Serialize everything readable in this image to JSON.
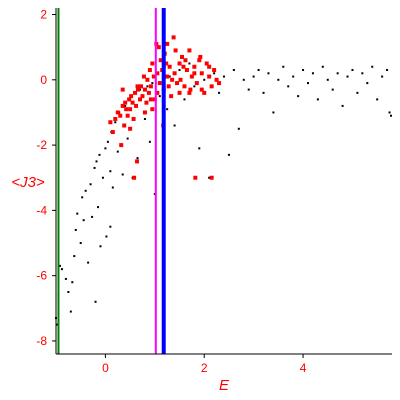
{
  "chart_data": {
    "type": "scatter",
    "title": "",
    "xlabel": "E",
    "ylabel": "<J3>",
    "xlim": [
      -1.0,
      5.8
    ],
    "ylim": [
      -8.4,
      2.2
    ],
    "xticks": [
      0,
      2,
      4
    ],
    "xtick_labels": [
      "0",
      "2",
      "4"
    ],
    "yticks": [
      2,
      0,
      -2,
      -4,
      -6,
      -8
    ],
    "ytick_labels": [
      "2",
      "0",
      "-2",
      "-4",
      "-6",
      "-8"
    ],
    "grid": false,
    "legend": "none",
    "vertical_lines": [
      {
        "x": -0.95,
        "color": "#008000"
      },
      {
        "x": 1.02,
        "color": "#ff00ff"
      },
      {
        "x": 1.18,
        "color": "#0000ff"
      }
    ],
    "series": [
      {
        "color": "#000000",
        "marker": "small-dot",
        "points": [
          [
            -1.0,
            -7.3
          ],
          [
            -0.98,
            -7.5
          ],
          [
            -0.95,
            -6.6
          ],
          [
            -0.92,
            -5.7
          ],
          [
            -0.88,
            -5.8
          ],
          [
            -0.8,
            -6.1
          ],
          [
            -0.75,
            -6.5
          ],
          [
            -0.7,
            -7.1
          ],
          [
            -0.67,
            -6.2
          ],
          [
            -0.63,
            -5.4
          ],
          [
            -0.6,
            -4.6
          ],
          [
            -0.57,
            -4.1
          ],
          [
            -0.5,
            -5.0
          ],
          [
            -0.47,
            -3.6
          ],
          [
            -0.44,
            -4.3
          ],
          [
            -0.4,
            -3.4
          ],
          [
            -0.35,
            -5.6
          ],
          [
            -0.3,
            -3.2
          ],
          [
            -0.27,
            -4.2
          ],
          [
            -0.2,
            -6.8
          ],
          [
            -0.22,
            -2.7
          ],
          [
            -0.18,
            -2.5
          ],
          [
            -0.15,
            -3.9
          ],
          [
            -0.12,
            -2.3
          ],
          [
            -0.1,
            -5.1
          ],
          [
            -0.05,
            -3.0
          ],
          [
            0.0,
            -2.1
          ],
          [
            0.02,
            -4.8
          ],
          [
            0.05,
            -1.9
          ],
          [
            0.1,
            -2.8
          ],
          [
            0.1,
            -4.5
          ],
          [
            0.12,
            -1.6
          ],
          [
            0.15,
            -3.3
          ],
          [
            0.2,
            -1.3
          ],
          [
            0.25,
            -2.2
          ],
          [
            0.28,
            -1.0
          ],
          [
            0.35,
            -2.9
          ],
          [
            0.4,
            -0.8
          ],
          [
            0.45,
            -1.8
          ],
          [
            0.5,
            -0.6
          ],
          [
            0.55,
            -3.0
          ],
          [
            0.6,
            -0.4
          ],
          [
            0.65,
            -2.4
          ],
          [
            0.7,
            -0.3
          ],
          [
            0.8,
            -1.2
          ],
          [
            0.85,
            -0.2
          ],
          [
            0.9,
            -1.9
          ],
          [
            0.95,
            -0.1
          ],
          [
            1.0,
            -3.5
          ],
          [
            1.05,
            0.2
          ],
          [
            1.1,
            -0.5
          ],
          [
            1.2,
            0.4
          ],
          [
            1.25,
            -0.9
          ],
          [
            1.3,
            0.1
          ],
          [
            1.4,
            -1.4
          ],
          [
            1.5,
            0.3
          ],
          [
            1.6,
            -0.6
          ],
          [
            1.7,
            0.5
          ],
          [
            1.8,
            -0.2
          ],
          [
            1.9,
            -2.1
          ],
          [
            2.0,
            0.0
          ],
          [
            2.1,
            -3.0
          ],
          [
            2.2,
            0.2
          ],
          [
            2.3,
            -0.4
          ],
          [
            2.4,
            0.1
          ],
          [
            2.5,
            -2.3
          ],
          [
            2.6,
            0.3
          ],
          [
            2.7,
            -1.5
          ],
          [
            2.8,
            0.0
          ],
          [
            2.9,
            -0.3
          ],
          [
            3.0,
            0.1
          ],
          [
            3.1,
            0.3
          ],
          [
            3.2,
            -0.4
          ],
          [
            3.3,
            0.2
          ],
          [
            3.4,
            -1.0
          ],
          [
            3.5,
            0.0
          ],
          [
            3.6,
            0.4
          ],
          [
            3.7,
            -0.2
          ],
          [
            3.8,
            0.1
          ],
          [
            3.9,
            -0.5
          ],
          [
            4.0,
            0.3
          ],
          [
            4.1,
            -0.1
          ],
          [
            4.2,
            0.2
          ],
          [
            4.3,
            -0.6
          ],
          [
            4.4,
            0.4
          ],
          [
            4.5,
            0.0
          ],
          [
            4.6,
            -0.3
          ],
          [
            4.7,
            0.2
          ],
          [
            4.8,
            -0.8
          ],
          [
            4.9,
            0.1
          ],
          [
            5.0,
            0.3
          ],
          [
            5.1,
            -0.4
          ],
          [
            5.2,
            0.2
          ],
          [
            5.3,
            -0.1
          ],
          [
            5.4,
            0.4
          ],
          [
            5.5,
            -0.6
          ],
          [
            5.6,
            0.1
          ],
          [
            5.7,
            0.3
          ],
          [
            5.75,
            -1.0
          ],
          [
            5.78,
            -1.1
          ]
        ]
      },
      {
        "color": "#ff0000",
        "marker": "square",
        "points": [
          [
            0.1,
            -1.3
          ],
          [
            0.15,
            -1.6
          ],
          [
            0.2,
            -1.2
          ],
          [
            0.25,
            -1.0
          ],
          [
            0.3,
            -1.1
          ],
          [
            0.32,
            -2.0
          ],
          [
            0.35,
            -0.8
          ],
          [
            0.38,
            -1.4
          ],
          [
            0.4,
            -0.7
          ],
          [
            0.42,
            -0.9
          ],
          [
            0.45,
            -1.1
          ],
          [
            0.48,
            -0.6
          ],
          [
            0.5,
            -0.9
          ],
          [
            0.52,
            -0.5
          ],
          [
            0.55,
            -0.7
          ],
          [
            0.57,
            -1.2
          ],
          [
            0.6,
            -0.4
          ],
          [
            0.62,
            -0.8
          ],
          [
            0.64,
            -2.5
          ],
          [
            0.66,
            -0.3
          ],
          [
            0.7,
            -0.6
          ],
          [
            0.72,
            -0.2
          ],
          [
            0.75,
            -0.5
          ],
          [
            0.78,
            0.1
          ],
          [
            0.8,
            -0.3
          ],
          [
            0.83,
            -0.7
          ],
          [
            0.85,
            0.0
          ],
          [
            0.88,
            -0.4
          ],
          [
            0.9,
            0.3
          ],
          [
            0.92,
            -0.2
          ],
          [
            0.95,
            0.5
          ],
          [
            0.98,
            0.1
          ],
          [
            1.0,
            -0.6
          ],
          [
            1.05,
            0.2
          ],
          [
            1.08,
            1.0
          ],
          [
            1.1,
            -0.1
          ],
          [
            1.12,
            0.6
          ],
          [
            1.15,
            0.3
          ],
          [
            1.18,
            -0.3
          ],
          [
            1.2,
            0.8
          ],
          [
            1.25,
            0.1
          ],
          [
            1.28,
            -0.2
          ],
          [
            1.3,
            0.4
          ],
          [
            1.35,
            0.0
          ],
          [
            1.38,
            1.3
          ],
          [
            1.4,
            0.2
          ],
          [
            1.45,
            -0.1
          ],
          [
            1.5,
            0.5
          ],
          [
            1.52,
            0.0
          ],
          [
            1.55,
            0.7
          ],
          [
            1.6,
            -0.2
          ],
          [
            1.65,
            0.3
          ],
          [
            1.7,
            0.9
          ],
          [
            1.72,
            -0.3
          ],
          [
            1.75,
            0.1
          ],
          [
            1.8,
            0.4
          ],
          [
            1.85,
            -0.1
          ],
          [
            1.9,
            0.6
          ],
          [
            1.95,
            0.2
          ],
          [
            2.0,
            -0.4
          ],
          [
            2.05,
            0.5
          ],
          [
            2.1,
            0.1
          ],
          [
            2.15,
            -0.2
          ],
          [
            2.2,
            0.3
          ],
          [
            2.25,
            0.0
          ],
          [
            2.3,
            -0.1
          ],
          [
            1.05,
            -0.4
          ],
          [
            0.92,
            -0.6
          ],
          [
            0.58,
            -3.0
          ],
          [
            1.25,
            1.1
          ],
          [
            0.65,
            -0.2
          ],
          [
            1.42,
            0.9
          ],
          [
            1.82,
            -3.0
          ],
          [
            2.15,
            -3.0
          ],
          [
            1.5,
            -0.4
          ],
          [
            1.62,
            0.6
          ],
          [
            0.35,
            -0.3
          ],
          [
            0.95,
            -0.9
          ],
          [
            1.33,
            -0.5
          ],
          [
            1.95,
            -0.3
          ],
          [
            1.03,
            1.1
          ],
          [
            1.8,
            0.2
          ],
          [
            0.5,
            -1.5
          ],
          [
            1.17,
            -1.4
          ],
          [
            1.58,
            0.4
          ],
          [
            0.8,
            -1.0
          ],
          [
            1.92,
            0.7
          ],
          [
            2.1,
            0.4
          ],
          [
            1.7,
            -0.4
          ],
          [
            1.23,
            0.5
          ]
        ]
      }
    ]
  }
}
